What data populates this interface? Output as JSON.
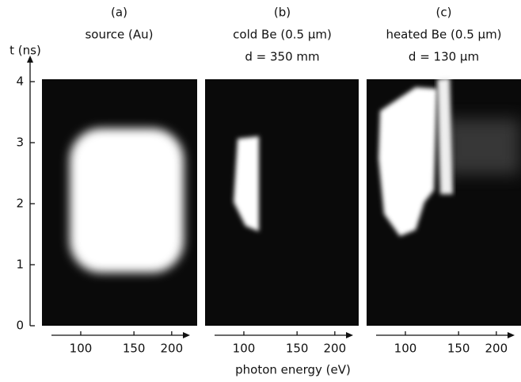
{
  "chart_data": [
    {
      "type": "image",
      "title": "(a)",
      "subtitle": [
        "source (Au)"
      ],
      "xscale": "log",
      "xlim": [
        80,
        230
      ],
      "xticks": [
        100,
        150,
        200
      ],
      "ylim": [
        0,
        4
      ],
      "yticks": [
        0,
        1,
        2,
        3,
        4
      ],
      "ylabel": "t (ns)"
    },
    {
      "type": "image",
      "title": "(b)",
      "subtitle": [
        "cold Be (0.5 μm)",
        "d = 350 mm"
      ],
      "xscale": "log",
      "xlim": [
        80,
        230
      ],
      "xticks": [
        100,
        150,
        200
      ],
      "xlabel": "photon energy (eV)"
    },
    {
      "type": "image",
      "title": "(c)",
      "subtitle": [
        "heated Be (0.5 μm)",
        "d = 130 μm"
      ],
      "xscale": "log",
      "xlim": [
        80,
        230
      ],
      "xticks": [
        100,
        150,
        200
      ]
    }
  ]
}
